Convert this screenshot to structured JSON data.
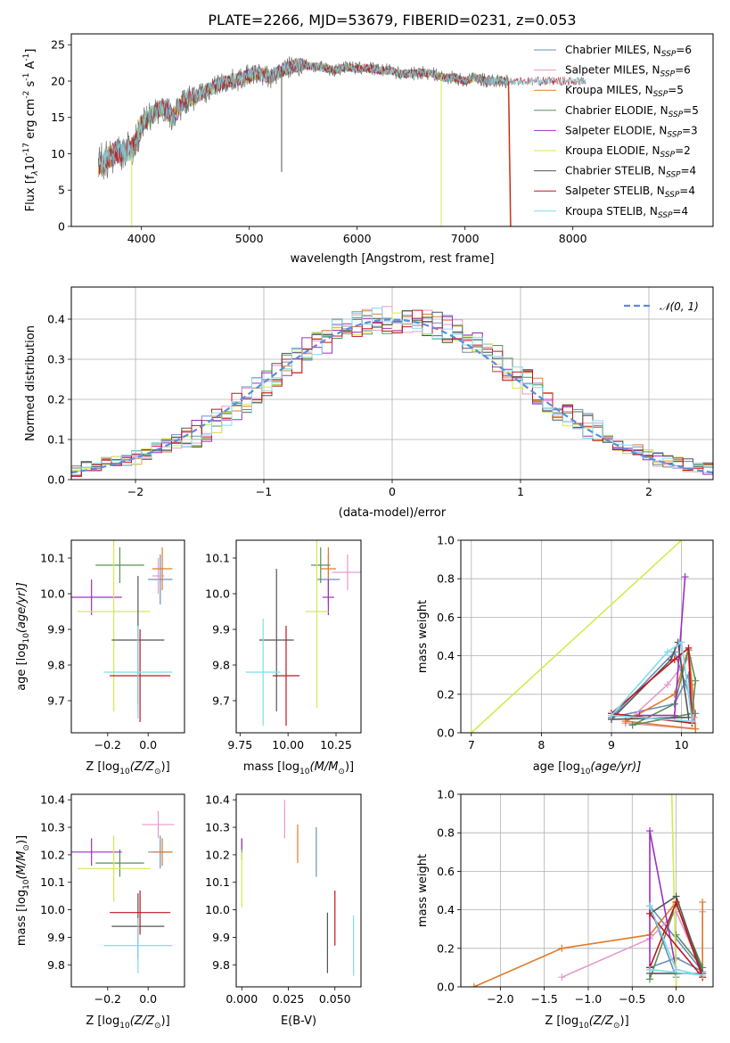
{
  "chart_data": [
    {
      "type": "line",
      "title": "PLATE=2266, MJD=53679, FIBERID=0231, z=0.053",
      "xlabel": "wavelength [Angstrom, rest frame]",
      "ylabel_main": "Flux [f",
      "ylabel_rest": "10",
      "ylabel_units": " erg cm",
      "ylabel_parts": [
        "λ",
        "-17",
        "-2",
        " s",
        "-1",
        " A",
        "-1",
        "]"
      ],
      "xlim": [
        3350,
        9300
      ],
      "ylim": [
        0,
        26.5
      ],
      "xticks": [
        "4000",
        "5000",
        "6000",
        "7000",
        "8000"
      ],
      "xtick_values": [
        4000,
        5000,
        6000,
        7000,
        8000
      ],
      "yticks": [
        "0",
        "5",
        "10",
        "15",
        "20",
        "25"
      ],
      "ytick_values": [
        0,
        5,
        10,
        15,
        20,
        25
      ],
      "spectrum_anchor_x": [
        3600,
        3700,
        3800,
        3900,
        3950,
        4000,
        4100,
        4200,
        4300,
        4400,
        4500,
        4600,
        4700,
        4800,
        4900,
        5000,
        5100,
        5200,
        5300,
        5400,
        5500,
        5600,
        5700,
        5800,
        5900,
        6000,
        6100,
        6200,
        6300,
        6400,
        6500,
        6600,
        6700,
        6800,
        6900,
        7000,
        7100,
        7200,
        7300,
        7400
      ],
      "spectrum_anchor_y": [
        8.5,
        9.5,
        10.5,
        10.5,
        11.5,
        14.0,
        15.5,
        16.5,
        15.0,
        17.5,
        18.0,
        18.5,
        19.5,
        20.0,
        20.2,
        20.8,
        21.0,
        20.5,
        21.5,
        22.0,
        22.3,
        22.0,
        21.8,
        21.5,
        22.0,
        21.7,
        21.8,
        21.5,
        21.5,
        21.0,
        21.0,
        21.2,
        21.0,
        20.5,
        20.5,
        20.0,
        20.5,
        20.0,
        20.0,
        20.0
      ],
      "legend_position": "upper right",
      "series": [
        {
          "name": "Chabrier MILES, N",
          "sub": "SSP",
          "count": "=6",
          "color": "#6c8ebf"
        },
        {
          "name": "Salpeter MILES, N",
          "sub": "SSP",
          "count": "=6",
          "color": "#e69acd"
        },
        {
          "name": "Kroupa MILES, N",
          "sub": "SSP",
          "count": "=5",
          "color": "#e07b2a"
        },
        {
          "name": "Chabrier ELODIE, N",
          "sub": "SSP",
          "count": "=5",
          "color": "#5a8f5a"
        },
        {
          "name": "Salpeter ELODIE, N",
          "sub": "SSP",
          "count": "=3",
          "color": "#9b30c0"
        },
        {
          "name": "Kroupa ELODIE, N",
          "sub": "SSP",
          "count": "=2",
          "color": "#d4ea4e"
        },
        {
          "name": "Chabrier STELIB, N",
          "sub": "SSP",
          "count": "=4",
          "color": "#555555"
        },
        {
          "name": "Salpeter STELIB, N",
          "sub": "SSP",
          "count": "=4",
          "color": "#c0161f"
        },
        {
          "name": "Kroupa STELIB, N",
          "sub": "SSP",
          "count": "=4",
          "color": "#7fdcea"
        }
      ]
    },
    {
      "type": "bar",
      "xlabel": "(data-model)/error",
      "ylabel": "Normed distribution",
      "xlim": [
        -2.5,
        2.5
      ],
      "ylim": [
        0,
        0.48
      ],
      "xticks": [
        "−2",
        "−1",
        "0",
        "1",
        "2"
      ],
      "xtick_values": [
        -2,
        -1,
        0,
        1,
        2
      ],
      "yticks": [
        "0.0",
        "0.1",
        "0.2",
        "0.3",
        "0.4"
      ],
      "ytick_values": [
        0,
        0.1,
        0.2,
        0.3,
        0.4
      ],
      "grid": true,
      "bin_width": 0.1,
      "bin_start": -2.5,
      "base_values": [
        0.025,
        0.03,
        0.035,
        0.04,
        0.045,
        0.05,
        0.055,
        0.065,
        0.075,
        0.085,
        0.095,
        0.105,
        0.115,
        0.13,
        0.145,
        0.16,
        0.18,
        0.2,
        0.22,
        0.24,
        0.26,
        0.28,
        0.3,
        0.32,
        0.335,
        0.35,
        0.365,
        0.375,
        0.385,
        0.39,
        0.395,
        0.398,
        0.4,
        0.398,
        0.395,
        0.39,
        0.385,
        0.375,
        0.365,
        0.35,
        0.335,
        0.32,
        0.3,
        0.28,
        0.26,
        0.24,
        0.22,
        0.2,
        0.18,
        0.16,
        0.145,
        0.13,
        0.115,
        0.1,
        0.09,
        0.08,
        0.07,
        0.06,
        0.05,
        0.045,
        0.04,
        0.035,
        0.03,
        0.025
      ],
      "legend_label": "$\\mathcal{N}(0,1)$",
      "legend_text": "𝒩(0, 1)",
      "legend_position": "upper right",
      "gaussian_color": "#5b8ddb"
    },
    {
      "type": "scatter",
      "xlabel": "Z [log",
      "xlabel_sub": "10",
      "xlabel_rest": "(Z/Z",
      "xlabel_end": ")]",
      "ylabel": "age  [log",
      "ylabel_sub": "10",
      "ylabel_rest": "(age/yr)]",
      "xlim": [
        -0.38,
        0.18
      ],
      "ylim": [
        9.61,
        10.15
      ],
      "xticks": [
        "−0.2",
        "0.0"
      ],
      "xtick_values": [
        -0.2,
        0.0
      ],
      "yticks": [
        "9.7",
        "9.8",
        "9.9",
        "10.0",
        "10.1"
      ],
      "ytick_values": [
        9.7,
        9.8,
        9.9,
        10.0,
        10.1
      ],
      "points": [
        {
          "x": 0.06,
          "y": 10.04,
          "xerr": 0.06,
          "yerr": 0.07,
          "color": "#6c8ebf"
        },
        {
          "x": 0.05,
          "y": 10.05,
          "xerr": 0.03,
          "yerr": 0.05,
          "color": "#e69acd"
        },
        {
          "x": 0.07,
          "y": 10.07,
          "xerr": 0.05,
          "yerr": 0.06,
          "color": "#e07b2a"
        },
        {
          "x": -0.14,
          "y": 10.08,
          "xerr": 0.12,
          "yerr": 0.05,
          "color": "#5a8f5a"
        },
        {
          "x": -0.28,
          "y": 9.99,
          "xerr": 0.15,
          "yerr": 0.05,
          "color": "#9b30c0"
        },
        {
          "x": -0.17,
          "y": 9.95,
          "xerr": 0.18,
          "yerr": 0.28,
          "color": "#d4ea4e"
        },
        {
          "x": -0.05,
          "y": 9.87,
          "xerr": 0.13,
          "yerr": 0.18,
          "color": "#555555"
        },
        {
          "x": -0.04,
          "y": 9.77,
          "xerr": 0.15,
          "yerr": 0.13,
          "color": "#c0161f"
        },
        {
          "x": -0.05,
          "y": 9.78,
          "xerr": 0.17,
          "yerr": 0.13,
          "color": "#7fdcea"
        }
      ]
    },
    {
      "type": "scatter",
      "xlabel": "mass [log",
      "xlabel_sub": "10",
      "xlabel_rest": "(M/M",
      "xlabel_end": ")]",
      "xlim": [
        9.73,
        10.38
      ],
      "ylim": [
        9.61,
        10.15
      ],
      "xticks": [
        "9.75",
        "10.00",
        "10.25"
      ],
      "xtick_values": [
        9.75,
        10.0,
        10.25
      ],
      "yticks": [
        "9.7",
        "9.8",
        "9.9",
        "10.0",
        "10.1"
      ],
      "ytick_values": [
        9.7,
        9.8,
        9.9,
        10.0,
        10.1
      ],
      "points": [
        {
          "x": 10.21,
          "y": 10.04,
          "xerr": 0.06,
          "yerr": 0.07,
          "color": "#6c8ebf"
        },
        {
          "x": 10.31,
          "y": 10.06,
          "xerr": 0.08,
          "yerr": 0.05,
          "color": "#e69acd"
        },
        {
          "x": 10.21,
          "y": 10.07,
          "xerr": 0.04,
          "yerr": 0.06,
          "color": "#e07b2a"
        },
        {
          "x": 10.17,
          "y": 10.08,
          "xerr": 0.05,
          "yerr": 0.05,
          "color": "#5a8f5a"
        },
        {
          "x": 10.21,
          "y": 9.99,
          "xerr": 0.03,
          "yerr": 0.05,
          "color": "#9b30c0"
        },
        {
          "x": 10.15,
          "y": 9.95,
          "xerr": 0.06,
          "yerr": 0.27,
          "color": "#d4ea4e"
        },
        {
          "x": 9.94,
          "y": 9.87,
          "xerr": 0.09,
          "yerr": 0.2,
          "color": "#555555"
        },
        {
          "x": 9.99,
          "y": 9.77,
          "xerr": 0.07,
          "yerr": 0.14,
          "color": "#c0161f"
        },
        {
          "x": 9.87,
          "y": 9.78,
          "xerr": 0.09,
          "yerr": 0.15,
          "color": "#7fdcea"
        }
      ]
    },
    {
      "type": "line",
      "xlabel": "age  [log",
      "xlabel_sub": "10",
      "xlabel_rest": "(age/yr)]",
      "ylabel": "mass weight",
      "xlim": [
        6.85,
        10.45
      ],
      "ylim": [
        0,
        1.0
      ],
      "xticks": [
        "7",
        "8",
        "9",
        "10"
      ],
      "xtick_values": [
        7,
        8,
        9,
        10
      ],
      "yticks": [
        "0.0",
        "0.2",
        "0.4",
        "0.6",
        "0.8",
        "1.0"
      ],
      "ytick_values": [
        0,
        0.2,
        0.4,
        0.6,
        0.8,
        1.0
      ],
      "grid": true,
      "series": [
        {
          "color": "#6c8ebf",
          "x": [
            9.0,
            9.9,
            10.1,
            10.15,
            10.2,
            9.9,
            9.0
          ],
          "y": [
            0.08,
            0.15,
            0.3,
            0.05,
            0.1,
            0.42,
            0.08
          ]
        },
        {
          "color": "#e69acd",
          "x": [
            9.2,
            9.8,
            10.1,
            10.18,
            10.2,
            9.2
          ],
          "y": [
            0.05,
            0.25,
            0.39,
            0.08,
            0.02,
            0.05
          ]
        },
        {
          "color": "#e07b2a",
          "x": [
            9.2,
            9.9,
            10.1,
            10.15,
            10.2,
            9.2
          ],
          "y": [
            0.06,
            0.2,
            0.44,
            0.25,
            0.02,
            0.06
          ]
        },
        {
          "color": "#5a8f5a",
          "x": [
            9.3,
            9.9,
            10.1,
            10.2,
            10.15,
            9.3
          ],
          "y": [
            0.04,
            0.15,
            0.43,
            0.27,
            0.1,
            0.04
          ]
        },
        {
          "color": "#9b30c0",
          "x": [
            9.4,
            9.9,
            10.05
          ],
          "y": [
            0.09,
            0.09,
            0.81
          ]
        },
        {
          "color": "#d4ea4e",
          "x": [
            7.0,
            10.0
          ],
          "y": [
            0.0,
            1.0
          ]
        },
        {
          "color": "#555555",
          "x": [
            9.0,
            9.85,
            9.95,
            10.1,
            9.0
          ],
          "y": [
            0.07,
            0.38,
            0.47,
            0.08,
            0.07
          ]
        },
        {
          "color": "#c0161f",
          "x": [
            9.0,
            9.9,
            10.1,
            10.15,
            9.0
          ],
          "y": [
            0.1,
            0.38,
            0.44,
            0.05,
            0.1
          ]
        },
        {
          "color": "#7fdcea",
          "x": [
            9.0,
            9.8,
            10.0,
            10.15,
            9.0
          ],
          "y": [
            0.09,
            0.42,
            0.47,
            0.06,
            0.09
          ]
        }
      ]
    },
    {
      "type": "scatter",
      "xlabel": "Z [log",
      "xlabel_sub": "10",
      "xlabel_rest": "(Z/Z",
      "xlabel_end": ")]",
      "ylabel": "mass [log",
      "ylabel_sub": "10",
      "ylabel_rest": "(M/M",
      "ylabel_end": ")]",
      "xlim": [
        -0.38,
        0.18
      ],
      "ylim": [
        9.72,
        10.42
      ],
      "xticks": [
        "−0.2",
        "0.0"
      ],
      "xtick_values": [
        -0.2,
        0.0
      ],
      "yticks": [
        "9.8",
        "9.9",
        "10.0",
        "10.1",
        "10.2",
        "10.3",
        "10.4"
      ],
      "ytick_values": [
        9.8,
        9.9,
        10.0,
        10.1,
        10.2,
        10.3,
        10.4
      ],
      "points": [
        {
          "x": 0.06,
          "y": 10.21,
          "xerr": 0.06,
          "yerr": 0.06,
          "color": "#6c8ebf"
        },
        {
          "x": 0.05,
          "y": 10.31,
          "xerr": 0.08,
          "yerr": 0.05,
          "color": "#e69acd"
        },
        {
          "x": 0.07,
          "y": 10.21,
          "xerr": 0.05,
          "yerr": 0.05,
          "color": "#e07b2a"
        },
        {
          "x": -0.14,
          "y": 10.17,
          "xerr": 0.12,
          "yerr": 0.05,
          "color": "#5a8f5a"
        },
        {
          "x": -0.28,
          "y": 10.21,
          "xerr": 0.15,
          "yerr": 0.05,
          "color": "#9b30c0"
        },
        {
          "x": -0.17,
          "y": 10.15,
          "xerr": 0.18,
          "yerr": 0.12,
          "color": "#d4ea4e"
        },
        {
          "x": -0.05,
          "y": 9.94,
          "xerr": 0.13,
          "yerr": 0.12,
          "color": "#555555"
        },
        {
          "x": -0.04,
          "y": 9.99,
          "xerr": 0.15,
          "yerr": 0.08,
          "color": "#c0161f"
        },
        {
          "x": -0.05,
          "y": 9.87,
          "xerr": 0.17,
          "yerr": 0.1,
          "color": "#7fdcea"
        }
      ]
    },
    {
      "type": "scatter",
      "xlabel": "E(B-V)",
      "xlim": [
        -0.003,
        0.064
      ],
      "ylim": [
        9.72,
        10.42
      ],
      "xticks": [
        "0.000",
        "0.025",
        "0.050"
      ],
      "xtick_values": [
        0.0,
        0.025,
        0.05
      ],
      "yticks": [
        "9.8",
        "9.9",
        "10.0",
        "10.1",
        "10.2",
        "10.3",
        "10.4"
      ],
      "ytick_values": [
        9.8,
        9.9,
        10.0,
        10.1,
        10.2,
        10.3,
        10.4
      ],
      "points": [
        {
          "x": 0.04,
          "y": 10.21,
          "xerr": 0,
          "yerr": 0.09,
          "color": "#6c8ebf"
        },
        {
          "x": 0.023,
          "y": 10.33,
          "xerr": 0,
          "yerr": 0.07,
          "color": "#e69acd"
        },
        {
          "x": 0.03,
          "y": 10.24,
          "xerr": 0,
          "yerr": 0.07,
          "color": "#e07b2a"
        },
        {
          "x": 0.0,
          "y": 10.22,
          "xerr": 0,
          "yerr": 0.04,
          "color": "#5a8f5a"
        },
        {
          "x": 0.0,
          "y": 10.24,
          "xerr": 0,
          "yerr": 0.02,
          "color": "#9b30c0"
        },
        {
          "x": 0.0,
          "y": 10.11,
          "xerr": 0,
          "yerr": 0.1,
          "color": "#d4ea4e"
        },
        {
          "x": 0.046,
          "y": 9.88,
          "xerr": 0,
          "yerr": 0.11,
          "color": "#555555"
        },
        {
          "x": 0.05,
          "y": 9.97,
          "xerr": 0,
          "yerr": 0.1,
          "color": "#c0161f"
        },
        {
          "x": 0.06,
          "y": 9.87,
          "xerr": 0,
          "yerr": 0.11,
          "color": "#7fdcea"
        }
      ]
    },
    {
      "type": "line",
      "xlabel": "Z [log",
      "xlabel_sub": "10",
      "xlabel_rest": "(Z/Z",
      "xlabel_end": ")]",
      "ylabel": "mass weight",
      "xlim": [
        -2.45,
        0.42
      ],
      "ylim": [
        0,
        1.0
      ],
      "xticks": [
        "−2.0",
        "−1.5",
        "−1.0",
        "−0.5",
        "0.0"
      ],
      "xtick_values": [
        -2.0,
        -1.5,
        -1.0,
        -0.5,
        0.0
      ],
      "yticks": [
        "0.0",
        "0.2",
        "0.4",
        "0.6",
        "0.8",
        "1.0"
      ],
      "ytick_values": [
        0,
        0.2,
        0.4,
        0.6,
        0.8,
        1.0
      ],
      "grid": true,
      "series": [
        {
          "color": "#6c8ebf",
          "x": [
            -0.3,
            0.0,
            0.3,
            -0.3,
            0.0
          ],
          "y": [
            0.1,
            0.15,
            0.08,
            0.42,
            0.05
          ]
        },
        {
          "color": "#e69acd",
          "x": [
            -1.3,
            -0.3,
            0.0,
            0.3,
            0.3
          ],
          "y": [
            0.05,
            0.25,
            0.39,
            0.08,
            0.39
          ]
        },
        {
          "color": "#e07b2a",
          "x": [
            -2.3,
            -1.3,
            -0.3,
            0.0,
            0.3,
            0.3
          ],
          "y": [
            0.0,
            0.2,
            0.27,
            0.44,
            0.05,
            0.44
          ]
        },
        {
          "color": "#5a8f5a",
          "x": [
            -0.3,
            0.0,
            0.3,
            0.0
          ],
          "y": [
            0.04,
            0.43,
            0.1,
            0.27
          ]
        },
        {
          "color": "#9b30c0",
          "x": [
            -0.3,
            -0.3,
            0.0
          ],
          "y": [
            0.09,
            0.81,
            0.09
          ]
        },
        {
          "color": "#d4ea4e",
          "x": [
            -0.05,
            0.0
          ],
          "y": [
            1.0,
            0.0
          ]
        },
        {
          "color": "#555555",
          "x": [
            -0.3,
            0.0,
            0.3,
            -0.3
          ],
          "y": [
            0.38,
            0.47,
            0.07,
            0.07
          ]
        },
        {
          "color": "#c0161f",
          "x": [
            -0.3,
            0.0,
            0.3,
            -0.3
          ],
          "y": [
            0.1,
            0.44,
            0.05,
            0.38
          ]
        },
        {
          "color": "#7fdcea",
          "x": [
            -0.3,
            0.0,
            0.3,
            -0.3
          ],
          "y": [
            0.42,
            0.09,
            0.06,
            0.09
          ]
        }
      ]
    }
  ]
}
